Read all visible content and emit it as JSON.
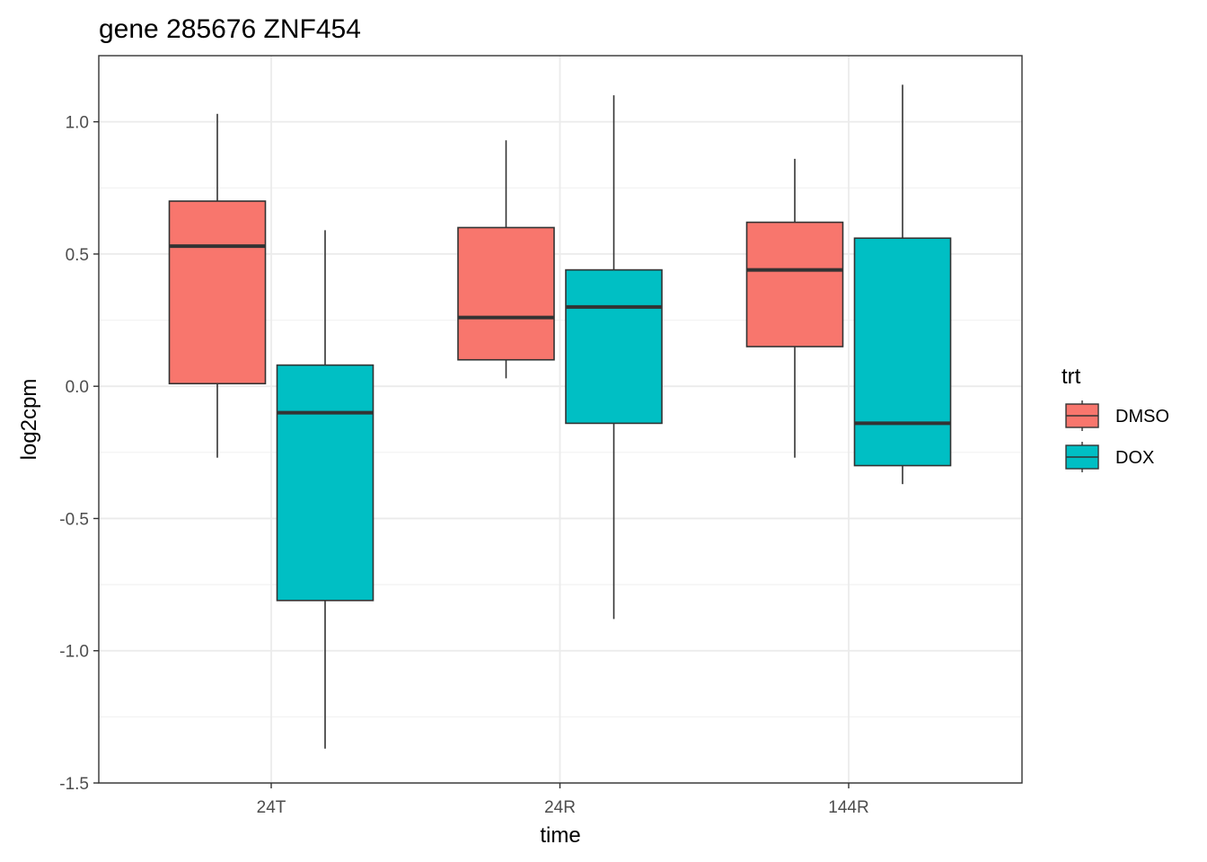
{
  "chart_data": {
    "type": "boxplot",
    "title": "gene 285676 ZNF454",
    "xlabel": "time",
    "ylabel": "log2cpm",
    "categories": [
      "24T",
      "24R",
      "144R"
    ],
    "ylim": [
      -1.5,
      1.25
    ],
    "yticks": [
      -1.5,
      -1.0,
      -0.5,
      0.0,
      0.5,
      1.0
    ],
    "ytick_labels": [
      "-1.5",
      "-1.0",
      "-0.5",
      "0.0",
      "0.5",
      "1.0"
    ],
    "grid": true,
    "legend": {
      "title": "trt",
      "position": "right"
    },
    "series": [
      {
        "name": "DMSO",
        "color": "#F8766D",
        "boxes": [
          {
            "category": "24T",
            "min": -0.27,
            "q1": 0.01,
            "median": 0.53,
            "q3": 0.7,
            "max": 1.03
          },
          {
            "category": "24R",
            "min": 0.03,
            "q1": 0.1,
            "median": 0.26,
            "q3": 0.6,
            "max": 0.93
          },
          {
            "category": "144R",
            "min": -0.27,
            "q1": 0.15,
            "median": 0.44,
            "q3": 0.62,
            "max": 0.86
          }
        ]
      },
      {
        "name": "DOX",
        "color": "#00BFC4",
        "boxes": [
          {
            "category": "24T",
            "min": -1.37,
            "q1": -0.81,
            "median": -0.1,
            "q3": 0.08,
            "max": 0.59
          },
          {
            "category": "24R",
            "min": -0.88,
            "q1": -0.14,
            "median": 0.3,
            "q3": 0.44,
            "max": 1.1
          },
          {
            "category": "144R",
            "min": -0.37,
            "q1": -0.3,
            "median": -0.14,
            "q3": 0.56,
            "max": 1.14
          }
        ]
      }
    ]
  }
}
